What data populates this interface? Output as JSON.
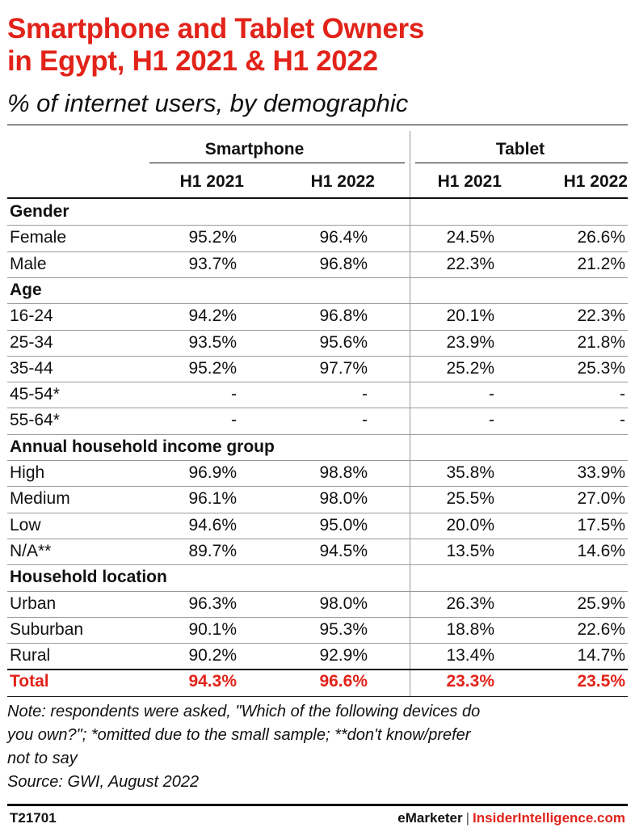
{
  "title_line1": "Smartphone and Tablet Owners",
  "title_line2": "in Egypt, H1 2021 & H1 2022",
  "subtitle": "% of internet users, by demographic",
  "chart_data": {
    "type": "table",
    "groups": [
      "Smartphone",
      "Tablet"
    ],
    "columns": [
      "H1 2021",
      "H1 2022",
      "H1 2021",
      "H1 2022"
    ],
    "rows": [
      {
        "label": "Gender",
        "group": true,
        "values": []
      },
      {
        "label": "Female",
        "values": [
          "95.2%",
          "96.4%",
          "24.5%",
          "26.6%"
        ]
      },
      {
        "label": "Male",
        "values": [
          "93.7%",
          "96.8%",
          "22.3%",
          "21.2%"
        ]
      },
      {
        "label": "Age",
        "group": true,
        "values": []
      },
      {
        "label": "16-24",
        "values": [
          "94.2%",
          "96.8%",
          "20.1%",
          "22.3%"
        ]
      },
      {
        "label": "25-34",
        "values": [
          "93.5%",
          "95.6%",
          "23.9%",
          "21.8%"
        ]
      },
      {
        "label": "35-44",
        "values": [
          "95.2%",
          "97.7%",
          "25.2%",
          "25.3%"
        ]
      },
      {
        "label": "45-54*",
        "values": [
          "-",
          "-",
          "-",
          "-"
        ]
      },
      {
        "label": "55-64*",
        "values": [
          "-",
          "-",
          "-",
          "-"
        ]
      },
      {
        "label": "Annual household income group",
        "group": true,
        "values": []
      },
      {
        "label": "High",
        "values": [
          "96.9%",
          "98.8%",
          "35.8%",
          "33.9%"
        ]
      },
      {
        "label": "Medium",
        "values": [
          "96.1%",
          "98.0%",
          "25.5%",
          "27.0%"
        ]
      },
      {
        "label": "Low",
        "values": [
          "94.6%",
          "95.0%",
          "20.0%",
          "17.5%"
        ]
      },
      {
        "label": "N/A**",
        "values": [
          "89.7%",
          "94.5%",
          "13.5%",
          "14.6%"
        ]
      },
      {
        "label": "Household location",
        "group": true,
        "values": []
      },
      {
        "label": "Urban",
        "values": [
          "96.3%",
          "98.0%",
          "26.3%",
          "25.9%"
        ]
      },
      {
        "label": "Suburban",
        "values": [
          "90.1%",
          "95.3%",
          "18.8%",
          "22.6%"
        ]
      },
      {
        "label": "Rural",
        "values": [
          "90.2%",
          "92.9%",
          "13.4%",
          "14.7%"
        ]
      },
      {
        "label": "Total",
        "total": true,
        "values": [
          "94.3%",
          "96.6%",
          "23.3%",
          "23.5%"
        ]
      }
    ]
  },
  "note_lines": [
    "Note: respondents were asked, \"Which of the following devices do",
    "you own?\"; *omitted due to the small sample; **don't know/prefer",
    "not to say"
  ],
  "source": "Source: GWI, August 2022",
  "footer": {
    "code": "T21701",
    "brand_left": "eMarketer",
    "separator": "|",
    "brand_right": "InsiderIntelligence.com"
  },
  "colors": {
    "accent": "#e2231a",
    "text": "#111111",
    "rule": "#111111",
    "grid": "#9a9a9a"
  }
}
